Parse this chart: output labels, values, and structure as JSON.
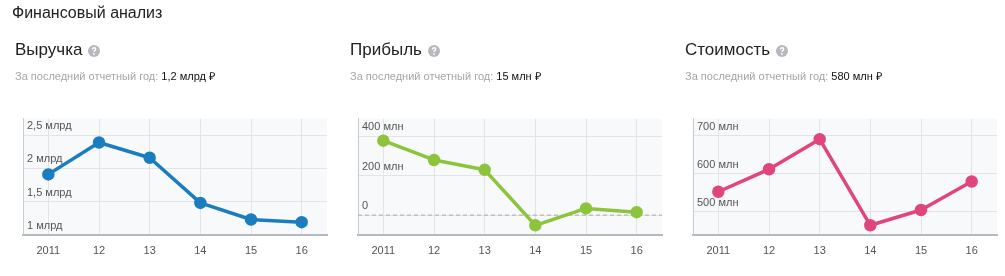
{
  "chart_data": [
    {
      "type": "line",
      "title": "Выручка",
      "subtitle": "За последний отчетный год: 1,2 млрд ₽",
      "annotations": [
        "Финансовый анализ"
      ],
      "categories": [
        "2011",
        "12",
        "13",
        "14",
        "15",
        "16"
      ],
      "series": [
        {
          "color": "#1a7dbf",
          "values": [
            1.91,
            2.39,
            2.16,
            1.48,
            1.23,
            1.19
          ]
        }
      ],
      "ylim": [
        1,
        2.75
      ],
      "yticks": [
        {
          "value": 1,
          "label": "1 млрд"
        },
        {
          "value": 1.5,
          "label": "1,5 млрд"
        },
        {
          "value": 2,
          "label": "2 млрд"
        },
        {
          "value": 2.5,
          "label": "2,5 млрд"
        }
      ],
      "grid": true,
      "marker": "circle",
      "line_style": "solid"
    },
    {
      "type": "line",
      "title": "Прибыль",
      "subtitle": "За последний отчетный год: 15 млн ₽",
      "categories": [
        "2011",
        "12",
        "13",
        "14",
        "15",
        "16"
      ],
      "series": [
        {
          "color": "#8cc43c",
          "values": [
            378,
            280,
            230,
            -52,
            34,
            15
          ]
        }
      ],
      "ylim": [
        -100,
        490
      ],
      "yticks": [
        0,
        {
          "value": 200,
          "label": "200 млн"
        },
        {
          "value": 400,
          "label": "400 млн"
        }
      ],
      "ref_lines": [
        {
          "axis": "y",
          "value": 0,
          "color": "#aaaaaa",
          "line_style": "dashed"
        }
      ],
      "grid": true,
      "marker": "circle",
      "line_style": "solid"
    },
    {
      "type": "line",
      "title": "Стоимость",
      "subtitle": "За последний отчетный год: 580 млн ₽",
      "categories": [
        "2011",
        "12",
        "13",
        "14",
        "15",
        "16"
      ],
      "series": [
        {
          "color": "#e0457b",
          "values": [
            553,
            612,
            691,
            465,
            505,
            580
          ]
        }
      ],
      "ylim": [
        440,
        745
      ],
      "yticks": [
        {
          "value": 500,
          "label": "500 млн"
        },
        {
          "value": 600,
          "label": "600 млн"
        },
        {
          "value": 700,
          "label": "700 млн"
        }
      ],
      "grid": true,
      "marker": "circle",
      "line_style": "solid"
    }
  ]
}
